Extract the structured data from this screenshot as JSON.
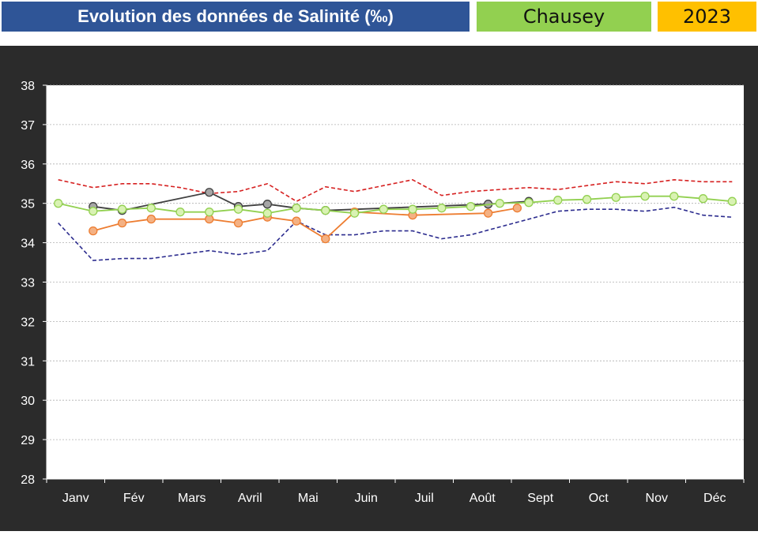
{
  "header": {
    "title": "Evolution des données de Salinité (‰)",
    "site": "Chausey",
    "year": "2023",
    "colors": {
      "title_bg": "#2f5597",
      "site_bg": "#92d050",
      "year_bg": "#ffc000"
    }
  },
  "chart_data": {
    "type": "line",
    "title": "",
    "xlabel": "",
    "ylabel": "",
    "ylim": [
      28,
      38
    ],
    "xlim": [
      0,
      12
    ],
    "yticks": [
      28,
      29,
      30,
      31,
      32,
      33,
      34,
      35,
      36,
      37,
      38
    ],
    "categories": [
      "Janv",
      "Fév",
      "Mars",
      "Avril",
      "Mai",
      "Juin",
      "Juil",
      "Août",
      "Sept",
      "Oct",
      "Nov",
      "Déc"
    ],
    "grid": true,
    "legend": "none",
    "series": [
      {
        "style": "dashed",
        "color": "#d62020",
        "markers": false,
        "x": [
          0.2,
          0.8,
          1.3,
          1.8,
          2.3,
          2.8,
          3.3,
          3.8,
          4.3,
          4.8,
          5.3,
          5.8,
          6.3,
          6.8,
          7.3,
          7.8,
          8.3,
          8.8,
          9.3,
          9.8,
          10.3,
          10.8,
          11.3,
          11.8
        ],
        "y": [
          35.6,
          35.4,
          35.5,
          35.5,
          35.4,
          35.25,
          35.3,
          35.5,
          35.05,
          35.42,
          35.3,
          35.45,
          35.6,
          35.2,
          35.3,
          35.35,
          35.4,
          35.35,
          35.45,
          35.55,
          35.5,
          35.6,
          35.55,
          35.55
        ]
      },
      {
        "style": "dashed",
        "color": "#2d2d8f",
        "markers": false,
        "x": [
          0.2,
          0.8,
          1.3,
          1.8,
          2.3,
          2.8,
          3.3,
          3.8,
          4.3,
          4.8,
          5.3,
          5.8,
          6.3,
          6.8,
          7.3,
          7.8,
          8.3,
          8.8,
          9.3,
          9.8,
          10.3,
          10.8,
          11.3,
          11.8
        ],
        "y": [
          34.5,
          33.55,
          33.6,
          33.6,
          33.7,
          33.8,
          33.7,
          33.8,
          34.55,
          34.2,
          34.2,
          34.3,
          34.3,
          34.1,
          34.2,
          34.4,
          34.6,
          34.8,
          34.85,
          34.85,
          34.8,
          34.9,
          34.7,
          34.65
        ]
      },
      {
        "style": "solid",
        "color": "#404040",
        "marker_fill": "#a6a6a6",
        "markers": true,
        "x": [
          0.8,
          1.3,
          2.8,
          3.3,
          3.8,
          4.3,
          4.8,
          7.6,
          8.3
        ],
        "y": [
          34.92,
          34.82,
          35.28,
          34.92,
          34.98,
          34.88,
          34.82,
          34.98,
          35.05
        ]
      },
      {
        "style": "solid",
        "color": "#ed7d31",
        "marker_fill": "#f4b183",
        "markers": true,
        "x": [
          0.8,
          1.3,
          1.8,
          2.8,
          3.3,
          3.8,
          4.3,
          4.8,
          5.3,
          6.3,
          7.6,
          8.1
        ],
        "y": [
          34.3,
          34.5,
          34.6,
          34.6,
          34.5,
          34.65,
          34.55,
          34.1,
          34.78,
          34.7,
          34.75,
          34.88
        ]
      },
      {
        "style": "solid",
        "color": "#92d050",
        "marker_fill": "#d9f2b3",
        "markers": true,
        "x": [
          0.2,
          0.8,
          1.3,
          1.8,
          2.3,
          2.8,
          3.3,
          3.8,
          4.3,
          4.8,
          5.3,
          5.8,
          6.3,
          6.8,
          7.3,
          7.8,
          8.3,
          8.8,
          9.3,
          9.8,
          10.3,
          10.8,
          11.3,
          11.8
        ],
        "y": [
          35.0,
          34.8,
          34.85,
          34.88,
          34.78,
          34.78,
          34.85,
          34.75,
          34.88,
          34.82,
          34.75,
          34.85,
          34.85,
          34.88,
          34.92,
          35.0,
          35.02,
          35.08,
          35.1,
          35.15,
          35.18,
          35.18,
          35.12,
          35.05
        ]
      }
    ]
  }
}
